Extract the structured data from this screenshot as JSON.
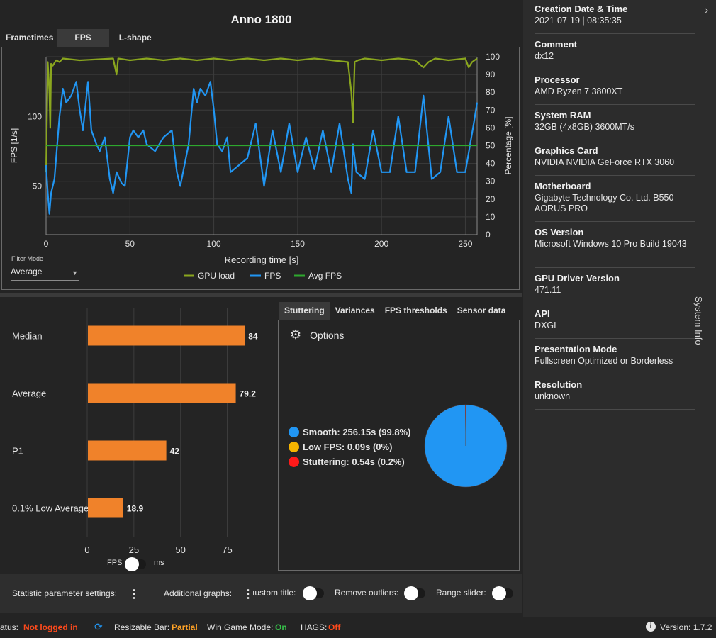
{
  "app": {
    "title": "Anno 1800",
    "top_tabs": [
      "Frametimes",
      "FPS",
      "L-shape"
    ],
    "active_top_tab": "FPS"
  },
  "chart_data": [
    {
      "type": "line",
      "xlabel": "Recording time [s]",
      "ylabel": "FPS [1/s]",
      "ylabel_right": "Percentage [%]",
      "x_ticks": [
        0,
        50,
        100,
        150,
        200,
        250
      ],
      "y_ticks": [
        50,
        100
      ],
      "y_right_ticks": [
        0,
        10,
        20,
        30,
        40,
        50,
        60,
        70,
        80,
        90,
        100
      ],
      "xlim": [
        0,
        257
      ],
      "ylim": [
        15,
        143
      ],
      "y_right_lim": [
        0,
        100
      ],
      "grid": true,
      "legend": "bottom",
      "series": [
        {
          "name": "GPU load",
          "axis": "right",
          "color": "#8aa61e",
          "x": [
            0,
            1,
            2,
            2.5,
            3,
            4,
            6,
            8,
            10,
            20,
            40,
            42,
            43,
            50,
            60,
            70,
            80,
            90,
            100,
            110,
            120,
            130,
            140,
            150,
            160,
            170,
            180,
            182,
            183,
            184,
            186,
            190,
            200,
            210,
            220,
            225,
            228,
            232,
            240,
            250,
            252,
            254,
            257
          ],
          "values": [
            35,
            97,
            80,
            60,
            96,
            95,
            98,
            97,
            99,
            98,
            99,
            90,
            99,
            98,
            99,
            98,
            99,
            98,
            99,
            98,
            99,
            98,
            99,
            98,
            99,
            98,
            97,
            80,
            63,
            97,
            98,
            99,
            98,
            99,
            98,
            94,
            97,
            99,
            98,
            99,
            94,
            97,
            99
          ]
        },
        {
          "name": "FPS",
          "axis": "left",
          "color": "#2196f3",
          "x": [
            0,
            1,
            2,
            3,
            5,
            8,
            10,
            12,
            15,
            18,
            20,
            22,
            25,
            27,
            30,
            32,
            35,
            38,
            40,
            42,
            45,
            47,
            50,
            52,
            55,
            58,
            60,
            65,
            70,
            75,
            78,
            80,
            85,
            88,
            90,
            92,
            95,
            98,
            100,
            102,
            105,
            108,
            110,
            115,
            120,
            125,
            130,
            135,
            140,
            145,
            150,
            155,
            160,
            165,
            170,
            175,
            180,
            182,
            183,
            185,
            190,
            195,
            200,
            205,
            210,
            215,
            220,
            225,
            230,
            235,
            240,
            245,
            250,
            255,
            257
          ],
          "values": [
            65,
            45,
            30,
            45,
            55,
            100,
            120,
            110,
            115,
            125,
            105,
            90,
            125,
            90,
            80,
            75,
            85,
            55,
            45,
            60,
            52,
            50,
            85,
            90,
            85,
            90,
            80,
            75,
            85,
            90,
            60,
            50,
            80,
            120,
            110,
            120,
            115,
            125,
            105,
            80,
            75,
            85,
            60,
            65,
            70,
            95,
            50,
            90,
            60,
            95,
            60,
            85,
            62,
            90,
            60,
            95,
            55,
            45,
            80,
            60,
            55,
            90,
            60,
            60,
            100,
            60,
            60,
            115,
            55,
            60,
            100,
            60,
            60,
            95,
            110
          ]
        },
        {
          "name": "Avg FPS",
          "axis": "left",
          "color": "#2ea82e",
          "x": [
            0,
            257
          ],
          "values": [
            79.2,
            79.2
          ]
        }
      ]
    },
    {
      "type": "bar",
      "orientation": "horizontal",
      "categories": [
        "Median",
        "Average",
        "P1",
        "0.1% Low Average"
      ],
      "values": [
        84,
        79.2,
        42,
        18.9
      ],
      "value_labels": [
        "84",
        "79.2",
        "42",
        "18.9"
      ],
      "x_ticks": [
        0,
        25,
        50,
        75
      ],
      "xlim": [
        0,
        90
      ],
      "color": "#f0822a"
    },
    {
      "type": "pie",
      "labels": [
        "Smooth",
        "Low FPS",
        "Stuttering"
      ],
      "values": [
        99.8,
        0,
        0.2
      ],
      "colors": [
        "#2196f3",
        "#f5b400",
        "#ff1a1a"
      ]
    }
  ],
  "filter": {
    "label": "Filter Mode",
    "value": "Average"
  },
  "unit_toggle": {
    "left": "FPS",
    "right": "ms"
  },
  "right_tabs": [
    "Stuttering",
    "Variances",
    "FPS thresholds",
    "Sensor data"
  ],
  "active_right_tab": "Stuttering",
  "stuttering": {
    "options_label": "Options",
    "legend": [
      {
        "label": "Smooth:  256.15s (99.8%)",
        "color": "#2196f3"
      },
      {
        "label": "Low FPS:  0.09s (0%)",
        "color": "#f5b400"
      },
      {
        "label": "Stuttering:  0.54s (0.2%)",
        "color": "#ff1a1a"
      }
    ]
  },
  "bottom": {
    "statistic_settings": "Statistic parameter settings:",
    "additional_graphs": "Additional graphs:",
    "custom_title": "ıustom title:",
    "remove_outliers": "Remove outliers:",
    "range_slider": "Range slider:"
  },
  "status": {
    "status_label": "atus:",
    "status_value": "Not logged in",
    "resizable_bar_label": "Resizable Bar:",
    "resizable_bar_value": "Partial",
    "win_game_mode_label": "Win Game Mode:",
    "win_game_mode_value": "On",
    "hags_label": "HAGS:",
    "hags_value": "Off",
    "version": "Version:  1.7.2"
  },
  "system_info": {
    "side_label": "System Info",
    "items": [
      {
        "key": "Creation Date & Time",
        "value": "2021-07-19  |  08:35:35"
      },
      {
        "key": "Comment",
        "value": "dx12"
      },
      {
        "key": "Processor",
        "value": "AMD Ryzen 7 3800XT"
      },
      {
        "key": "System RAM",
        "value": "32GB (4x8GB) 3600MT/s"
      },
      {
        "key": "Graphics Card",
        "value": "NVIDIA NVIDIA GeForce RTX 3060"
      },
      {
        "key": "Motherboard",
        "value": "Gigabyte Technology Co. Ltd. B550 AORUS PRO"
      },
      {
        "key": "OS Version",
        "value": "Microsoft Windows 10 Pro Build 19043"
      },
      {
        "key": "GPU Driver Version",
        "value": "471.11"
      },
      {
        "key": "API",
        "value": "DXGI"
      },
      {
        "key": "Presentation Mode",
        "value": "Fullscreen Optimized or Borderless"
      },
      {
        "key": "Resolution",
        "value": "unknown"
      }
    ]
  }
}
